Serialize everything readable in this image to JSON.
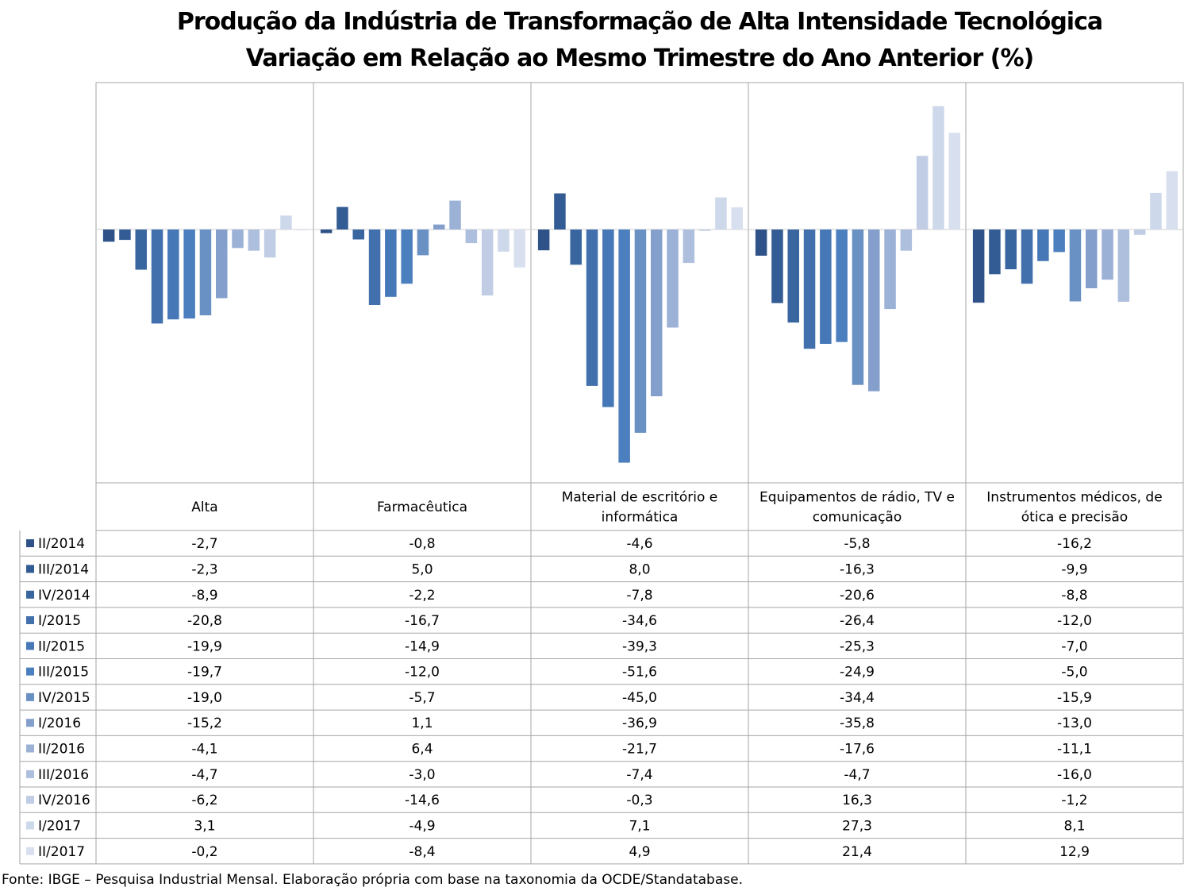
{
  "title": "Produção da Indústria de Transformação de Alta Intensidade Tecnológica",
  "subtitle": "Variação em Relação ao Mesmo Trimestre do Ano Anterior (%)",
  "source": "Fonte: IBGE – Pesquisa Industrial Mensal. Elaboração própria com base na taxonomia da OCDE/Standatabase.",
  "chart_data": {
    "type": "bar",
    "title": "Produção da Indústria de Transformação de Alta Intensidade Tecnológica",
    "subtitle": "Variação em Relação ao Mesmo Trimestre do Ano Anterior (%)",
    "categories": [
      "Alta",
      "Farmacêutica",
      "Material de escritório e informática",
      "Equipamentos de rádio, TV e comunicação",
      "Instrumentos médicos, de ótica e precisão"
    ],
    "category_lines": [
      [
        "Alta"
      ],
      [
        "Farmacêutica"
      ],
      [
        "Material de escritório e",
        "informática"
      ],
      [
        "Equipamentos de rádio, TV e",
        "comunicação"
      ],
      [
        "Instrumentos médicos, de",
        "ótica e precisão"
      ]
    ],
    "ylim": [
      -54,
      27.3
    ],
    "grid": false,
    "legend": "data-table",
    "series": [
      {
        "name": "II/2014",
        "color": "#2F5389",
        "values": [
          -2.7,
          -0.8,
          -4.6,
          -5.8,
          -16.2
        ],
        "labels": [
          "-2,7",
          "-0,8",
          "-4,6",
          "-5,8",
          "-16,2"
        ]
      },
      {
        "name": "III/2014",
        "color": "#335B94",
        "values": [
          -2.3,
          5.0,
          8.0,
          -16.3,
          -9.9
        ],
        "labels": [
          "-2,3",
          "5,0",
          "8,0",
          "-16,3",
          "-9,9"
        ]
      },
      {
        "name": "IV/2014",
        "color": "#3A669F",
        "values": [
          -8.9,
          -2.2,
          -7.8,
          -20.6,
          -8.8
        ],
        "labels": [
          "-8,9",
          "-2,2",
          "-7,8",
          "-20,6",
          "-8,8"
        ]
      },
      {
        "name": "I/2015",
        "color": "#4170AD",
        "values": [
          -20.8,
          -16.7,
          -34.6,
          -26.4,
          -12.0
        ],
        "labels": [
          "-20,8",
          "-16,7",
          "-34,6",
          "-26,4",
          "-12,0"
        ]
      },
      {
        "name": "II/2015",
        "color": "#4677B6",
        "values": [
          -19.9,
          -14.9,
          -39.3,
          -25.3,
          -7.0
        ],
        "labels": [
          "-19,9",
          "-14,9",
          "-39,3",
          "-25,3",
          "-7,0"
        ]
      },
      {
        "name": "III/2015",
        "color": "#4C7FBE",
        "values": [
          -19.7,
          -12.0,
          -51.6,
          -24.9,
          -5.0
        ],
        "labels": [
          "-19,7",
          "-12,0",
          "-51,6",
          "-24,9",
          "-5,0"
        ]
      },
      {
        "name": "IV/2015",
        "color": "#6A91C4",
        "values": [
          -19.0,
          -5.7,
          -45.0,
          -34.4,
          -15.9
        ],
        "labels": [
          "-19,0",
          "-5,7",
          "-45,0",
          "-34,4",
          "-15,9"
        ]
      },
      {
        "name": "I/2016",
        "color": "#859FCC",
        "values": [
          -15.2,
          1.1,
          -36.9,
          -35.8,
          -13.0
        ],
        "labels": [
          "-15,2",
          "1,1",
          "-36,9",
          "-35,8",
          "-13,0"
        ]
      },
      {
        "name": "II/2016",
        "color": "#9CB1D6",
        "values": [
          -4.1,
          6.4,
          -21.7,
          -17.6,
          -11.1
        ],
        "labels": [
          "-4,1",
          "6,4",
          "-21,7",
          "-17,6",
          "-11,1"
        ]
      },
      {
        "name": "III/2016",
        "color": "#AEBFDD",
        "values": [
          -4.7,
          -3.0,
          -7.4,
          -4.7,
          -16.0
        ],
        "labels": [
          "-4,7",
          "-3,0",
          "-7,4",
          "-4,7",
          "-16,0"
        ]
      },
      {
        "name": "IV/2016",
        "color": "#C0CDE4",
        "values": [
          -6.2,
          -14.6,
          -0.3,
          16.3,
          -1.2
        ],
        "labels": [
          "-6,2",
          "-14,6",
          "-0,3",
          "16,3",
          "-1,2"
        ]
      },
      {
        "name": "I/2017",
        "color": "#CDD8EA",
        "values": [
          3.1,
          -4.9,
          7.1,
          27.3,
          8.1
        ],
        "labels": [
          "3,1",
          "-4,9",
          "7,1",
          "27,3",
          "8,1"
        ]
      },
      {
        "name": "II/2017",
        "color": "#D8E0EF",
        "values": [
          -0.2,
          -8.4,
          4.9,
          21.4,
          12.9
        ],
        "labels": [
          "-0,2",
          "-8,4",
          "4,9",
          "21,4",
          "12,9"
        ]
      }
    ]
  }
}
